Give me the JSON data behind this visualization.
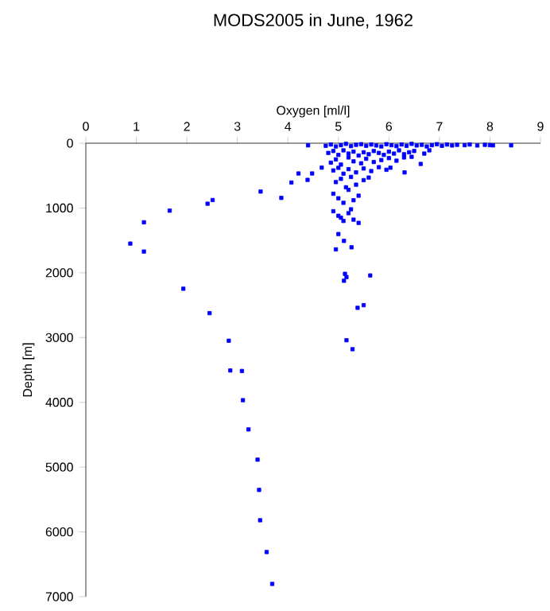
{
  "chart_data": {
    "type": "scatter",
    "title": "MODS2005 in June, 1962",
    "xlabel": "Oxygen [ml/l]",
    "ylabel": "Depth [m]",
    "xlim": [
      0,
      9
    ],
    "xticks": [
      0,
      1,
      2,
      3,
      4,
      5,
      6,
      7,
      8,
      9
    ],
    "ylim": [
      7000,
      0
    ],
    "yticks": [
      0,
      1000,
      2000,
      3000,
      4000,
      5000,
      6000,
      7000
    ],
    "marker": "square",
    "color": "#0000ff",
    "x": [
      0.88,
      1.15,
      1.15,
      1.66,
      2.41,
      2.51,
      1.93,
      2.45,
      2.83,
      2.86,
      3.09,
      3.11,
      3.22,
      3.4,
      3.43,
      3.45,
      3.58,
      3.69,
      5.16,
      5.28,
      5.38,
      5.5,
      3.46,
      3.87,
      4.07,
      4.21,
      4.39,
      4.48,
      4.4,
      4.67,
      4.95,
      5.0,
      5.11,
      5.26,
      5.13,
      5.16,
      5.11,
      5.63,
      6.03,
      6.31,
      6.63,
      8.42,
      8.06,
      4.75,
      4.85,
      4.95,
      5.05,
      5.15,
      5.25,
      5.35,
      5.45,
      5.55,
      5.65,
      5.75,
      5.85,
      5.95,
      6.05,
      6.15,
      6.25,
      6.35,
      6.45,
      6.55,
      6.65,
      6.75,
      6.85,
      6.95,
      7.05,
      7.15,
      7.25,
      7.35,
      7.5,
      7.6,
      7.75,
      7.9,
      8.0,
      4.8,
      4.9,
      5.0,
      5.1,
      5.2,
      5.3,
      5.4,
      5.5,
      5.6,
      5.7,
      5.8,
      5.9,
      6.0,
      6.1,
      6.2,
      6.3,
      6.4,
      6.5,
      6.7,
      6.8,
      4.85,
      4.95,
      5.05,
      5.2,
      5.3,
      5.45,
      5.55,
      5.7,
      5.85,
      6.0,
      6.15,
      6.3,
      6.45,
      4.9,
      5.0,
      5.1,
      5.2,
      5.35,
      5.5,
      5.65,
      5.8,
      5.95,
      4.95,
      5.05,
      5.15,
      5.25,
      5.35,
      5.5,
      5.6,
      4.9,
      5.0,
      5.1,
      5.2,
      5.3,
      5.4,
      4.9,
      5.0,
      5.1,
      5.2,
      5.3,
      5.4,
      5.05,
      5.25
    ],
    "values": [
      1549,
      1672,
      1221,
      1041,
      934,
      877,
      2246,
      2623,
      3049,
      3508,
      3516,
      3967,
      4418,
      4885,
      5352,
      5820,
      6311,
      6803,
      3041,
      3180,
      2541,
      2500,
      746,
      844,
      607,
      467,
      566,
      467,
      33,
      377,
      1639,
      1402,
      1508,
      1607,
      2016,
      2066,
      2123,
      2041,
      378,
      451,
      320,
      33,
      33,
      40,
      20,
      50,
      30,
      10,
      45,
      25,
      15,
      40,
      20,
      35,
      50,
      15,
      30,
      45,
      20,
      40,
      10,
      35,
      25,
      50,
      30,
      15,
      40,
      20,
      35,
      25,
      30,
      20,
      35,
      25,
      30,
      150,
      120,
      180,
      110,
      160,
      130,
      190,
      140,
      170,
      120,
      150,
      180,
      130,
      160,
      110,
      170,
      140,
      120,
      160,
      110,
      300,
      250,
      330,
      220,
      280,
      310,
      240,
      290,
      260,
      230,
      270,
      220,
      210,
      420,
      380,
      470,
      400,
      450,
      390,
      430,
      370,
      410,
      600,
      550,
      680,
      520,
      640,
      570,
      530,
      780,
      850,
      920,
      720,
      880,
      810,
      1050,
      1120,
      1200,
      1080,
      1180,
      1230,
      1150,
      1020
    ]
  }
}
